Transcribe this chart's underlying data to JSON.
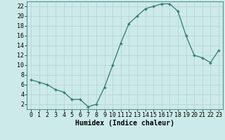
{
  "x": [
    0,
    1,
    2,
    3,
    4,
    5,
    6,
    7,
    8,
    9,
    10,
    11,
    12,
    13,
    14,
    15,
    16,
    17,
    18,
    19,
    20,
    21,
    22,
    23
  ],
  "y": [
    7,
    6.5,
    6,
    5,
    4.5,
    3,
    3,
    1.5,
    2,
    5.5,
    10,
    14.5,
    18.5,
    20,
    21.5,
    22,
    22.5,
    22.5,
    21,
    16,
    12,
    11.5,
    10.5,
    13
  ],
  "xlabel": "Humidex (Indice chaleur)",
  "ylim": [
    1,
    23
  ],
  "xlim": [
    -0.5,
    23.5
  ],
  "yticks": [
    2,
    4,
    6,
    8,
    10,
    12,
    14,
    16,
    18,
    20,
    22
  ],
  "xticks": [
    0,
    1,
    2,
    3,
    4,
    5,
    6,
    7,
    8,
    9,
    10,
    11,
    12,
    13,
    14,
    15,
    16,
    17,
    18,
    19,
    20,
    21,
    22,
    23
  ],
  "line_color": "#2e7b6e",
  "marker": "+",
  "bg_color": "#cceaea",
  "grid_color": "#b8d0d0",
  "label_fontsize": 7,
  "tick_fontsize": 6
}
